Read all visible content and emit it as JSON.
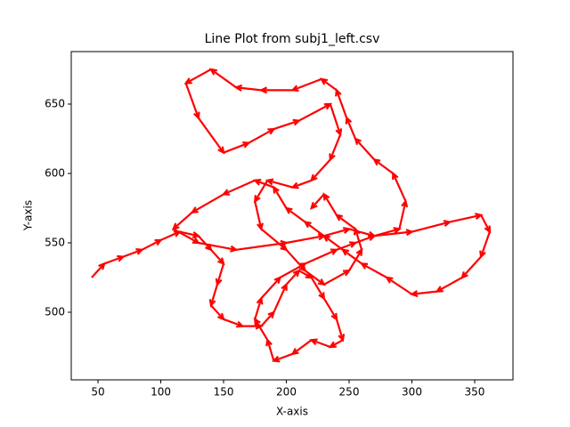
{
  "chart_data": {
    "type": "line",
    "title": "Line Plot from subj1_left.csv",
    "x_label": "X-axis",
    "y_label": "Y-axis",
    "x": [
      45,
      55,
      70,
      85,
      100,
      115,
      130,
      140,
      150,
      145,
      140,
      150,
      165,
      180,
      190,
      200,
      210,
      220,
      230,
      240,
      245,
      235,
      220,
      205,
      190,
      185,
      175,
      180,
      195,
      215,
      240,
      255,
      270,
      300,
      330,
      355,
      362,
      355,
      340,
      320,
      300,
      280,
      260,
      245,
      230,
      215,
      200,
      190,
      175,
      150,
      125,
      110,
      130,
      160,
      200,
      230,
      250,
      270,
      290,
      295,
      285,
      270,
      255,
      248,
      240,
      228,
      205,
      180,
      160,
      140,
      120,
      130,
      150,
      170,
      190,
      210,
      235,
      243,
      235,
      220,
      205,
      185,
      175,
      180,
      200,
      215,
      230,
      250,
      260,
      255,
      240,
      230,
      220
    ],
    "series": [
      {
        "color": "#1f77b4",
        "values": [
          525,
          535,
          540,
          545,
          552,
          558,
          555,
          545,
          535,
          520,
          505,
          495,
          490,
          490,
          500,
          520,
          530,
          525,
          510,
          495,
          480,
          475,
          480,
          470,
          465,
          480,
          495,
          510,
          525,
          535,
          545,
          550,
          555,
          558,
          565,
          570,
          558,
          540,
          525,
          515,
          513,
          525,
          535,
          545,
          555,
          565,
          575,
          590,
          595,
          585,
          572,
          560,
          550,
          545,
          550,
          555,
          560,
          555,
          560,
          580,
          600,
          610,
          625,
          640,
          660,
          668,
          660,
          660,
          662,
          675,
          665,
          640,
          615,
          622,
          632,
          638,
          650,
          628,
          610,
          595,
          590,
          595,
          580,
          560,
          545,
          530,
          520,
          530,
          545,
          560,
          570,
          585,
          575
        ]
      }
    ],
    "arrow_color": "#ff0000",
    "xlim": [
      28.7,
      380.5
    ],
    "ylim": [
      451.3,
      687.8
    ],
    "xticks": [
      50,
      100,
      150,
      200,
      250,
      300,
      350
    ],
    "yticks": [
      500,
      550,
      600,
      650
    ]
  }
}
